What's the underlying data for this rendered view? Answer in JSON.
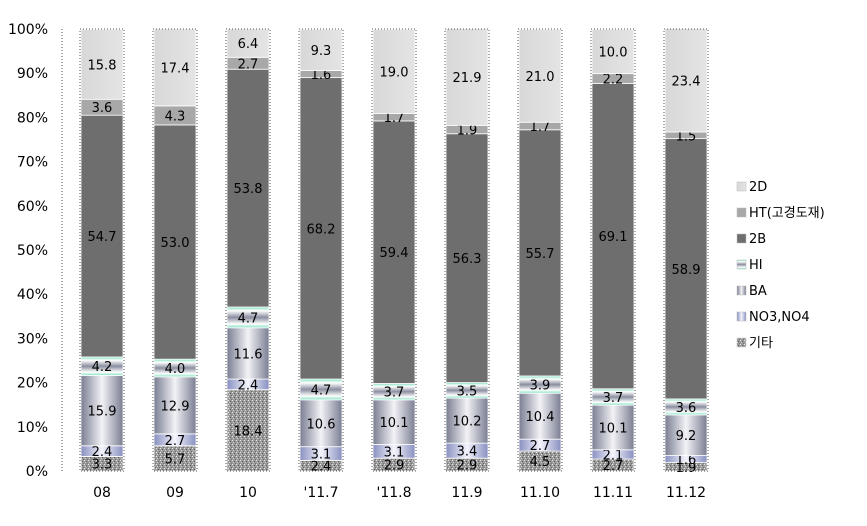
{
  "chart_data": {
    "type": "bar",
    "stacked": true,
    "normalized": true,
    "categories": [
      "08",
      "09",
      "10",
      "'11.7",
      "'11.8",
      "11.9",
      "11.10",
      "11.11",
      "11.12"
    ],
    "series": [
      {
        "name": "기타",
        "color": "#a0a0a0",
        "values": [
          3.3,
          5.7,
          18.4,
          2.4,
          2.9,
          2.9,
          4.5,
          2.7,
          1.9
        ]
      },
      {
        "name": "NO3,NO4",
        "color": "#b8bcd8",
        "values": [
          2.4,
          2.7,
          2.4,
          3.1,
          3.1,
          3.4,
          2.7,
          2.1,
          1.6
        ]
      },
      {
        "name": "BA",
        "color": "#c4c4cc",
        "values": [
          15.9,
          12.9,
          11.6,
          10.6,
          10.1,
          10.2,
          10.4,
          10.1,
          9.2
        ]
      },
      {
        "name": "HI",
        "color": "#c8ece0",
        "values": [
          4.2,
          4.0,
          4.7,
          4.7,
          3.7,
          3.5,
          3.9,
          3.7,
          3.6
        ]
      },
      {
        "name": "2B",
        "color": "#6e6e6e",
        "values": [
          54.7,
          53.0,
          53.8,
          68.2,
          59.4,
          56.3,
          55.7,
          69.1,
          58.9
        ]
      },
      {
        "name": "HT(고경도재)",
        "color": "#a8a8a8",
        "values": [
          3.6,
          4.3,
          2.7,
          1.6,
          1.7,
          1.9,
          1.7,
          2.2,
          1.5
        ]
      },
      {
        "name": "2D",
        "color": "#e0e0e0",
        "values": [
          15.8,
          17.4,
          6.4,
          9.3,
          19.0,
          21.9,
          21.0,
          10.0,
          23.4
        ]
      }
    ],
    "ylim": [
      0,
      100
    ],
    "yticks": [
      "0%",
      "10%",
      "20%",
      "30%",
      "40%",
      "50%",
      "60%",
      "70%",
      "80%",
      "90%",
      "100%"
    ],
    "grid": false,
    "legend_position": "right"
  }
}
